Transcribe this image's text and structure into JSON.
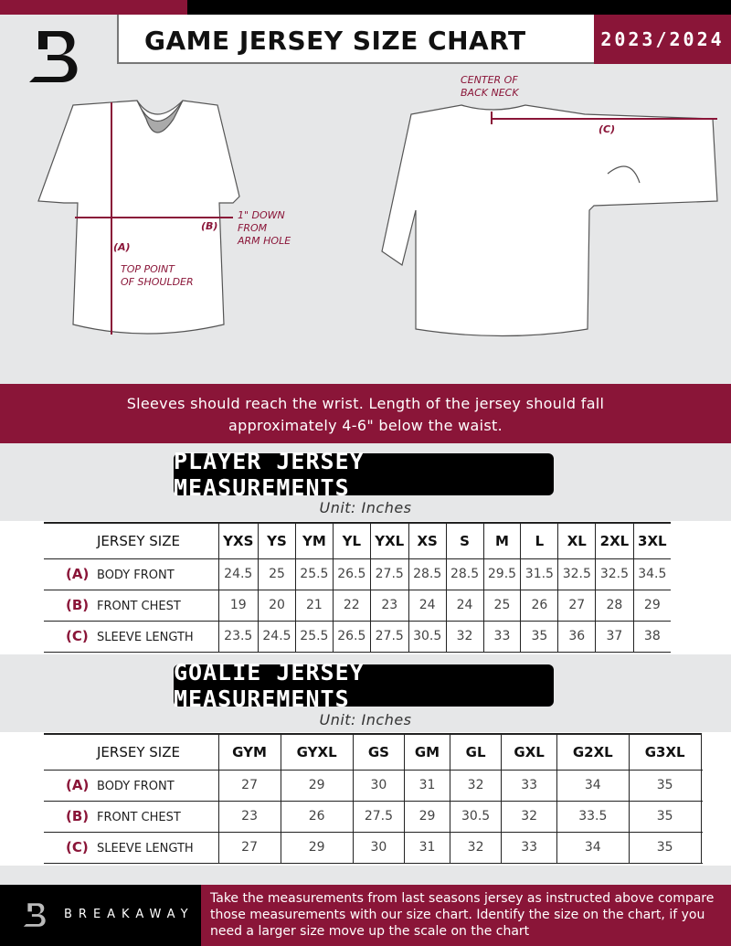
{
  "header": {
    "title": "GAME JERSEY SIZE CHART",
    "season": "2023/2024"
  },
  "colors": {
    "brand": "#8a1538",
    "background": "#e6e7e8"
  },
  "diagram": {
    "front_notes": {
      "a": "(A)",
      "a_desc": "TOP POINT\nOF SHOULDER",
      "b": "(B)",
      "b_desc": "1\" DOWN\nFROM\nARM HOLE"
    },
    "back_notes": {
      "c": "(C)",
      "c_desc": "CENTER OF\nBACK NECK"
    }
  },
  "band_text_1": "Sleeves should reach the wrist. Length of the jersey should fall",
  "band_text_2": "approximately 4-6\" below the waist.",
  "player": {
    "title": "PLAYER JERSEY MEASUREMENTS",
    "unit": "Unit: Inches",
    "size_label": "JERSEY SIZE",
    "sizes": [
      "YXS",
      "YS",
      "YM",
      "YL",
      "YXL",
      "XS",
      "S",
      "M",
      "L",
      "XL",
      "2XL",
      "3XL"
    ],
    "rows": [
      {
        "letter": "(A)",
        "label": "BODY FRONT",
        "values": [
          "24.5",
          "25",
          "25.5",
          "26.5",
          "27.5",
          "28.5",
          "28.5",
          "29.5",
          "31.5",
          "32.5",
          "32.5",
          "34.5"
        ]
      },
      {
        "letter": "(B)",
        "label": "FRONT CHEST",
        "values": [
          "19",
          "20",
          "21",
          "22",
          "23",
          "24",
          "24",
          "25",
          "26",
          "27",
          "28",
          "29"
        ]
      },
      {
        "letter": "(C)",
        "label": "SLEEVE LENGTH",
        "values": [
          "23.5",
          "24.5",
          "25.5",
          "26.5",
          "27.5",
          "30.5",
          "32",
          "33",
          "35",
          "36",
          "37",
          "38"
        ]
      }
    ]
  },
  "goalie": {
    "title": "GOALIE JERSEY MEASUREMENTS",
    "unit": "Unit: Inches",
    "size_label": "JERSEY SIZE",
    "sizes": [
      "GYM",
      "GYXL",
      "GS",
      "GM",
      "GL",
      "GXL",
      "G2XL",
      "G3XL",
      ""
    ],
    "rows": [
      {
        "letter": "(A)",
        "label": "BODY FRONT",
        "values": [
          "27",
          "29",
          "30",
          "31",
          "32",
          "33",
          "34",
          "35",
          ""
        ]
      },
      {
        "letter": "(B)",
        "label": "FRONT CHEST",
        "values": [
          "23",
          "26",
          "27.5",
          "29",
          "30.5",
          "32",
          "33.5",
          "35",
          ""
        ]
      },
      {
        "letter": "(C)",
        "label": "SLEEVE LENGTH",
        "values": [
          "27",
          "29",
          "30",
          "31",
          "32",
          "33",
          "34",
          "35",
          ""
        ]
      }
    ]
  },
  "footer": {
    "brand": "BREAKAWAY",
    "text": "Take the measurements from last seasons jersey as instructed above compare those measurements  with our size chart. Identify the size on the chart, if you need a larger size move up the scale on the chart"
  }
}
